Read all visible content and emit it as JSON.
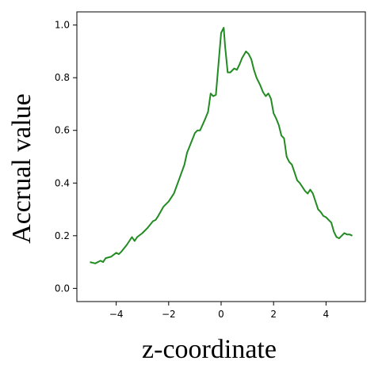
{
  "chart_data": {
    "type": "line",
    "title": "",
    "xlabel": "z-coordinate",
    "ylabel": "Accrual value",
    "xlim": [
      -5.5,
      5.5
    ],
    "ylim": [
      -0.05,
      1.05
    ],
    "xticks": [
      -4,
      -2,
      0,
      2,
      4
    ],
    "xtick_labels": [
      "−4",
      "−2",
      "0",
      "2",
      "4"
    ],
    "yticks": [
      0.0,
      0.2,
      0.4,
      0.6,
      0.8,
      1.0
    ],
    "ytick_labels": [
      "0.0",
      "0.2",
      "0.4",
      "0.6",
      "0.8",
      "1.0"
    ],
    "grid": false,
    "legend": "none",
    "series": [
      {
        "color": "#228B22",
        "x": [
          -5.0,
          -4.8,
          -4.6,
          -4.5,
          -4.4,
          -4.2,
          -4.0,
          -3.9,
          -3.8,
          -3.6,
          -3.4,
          -3.3,
          -3.2,
          -3.0,
          -2.8,
          -2.6,
          -2.5,
          -2.4,
          -2.2,
          -2.0,
          -1.8,
          -1.6,
          -1.4,
          -1.3,
          -1.2,
          -1.0,
          -0.9,
          -0.8,
          -0.6,
          -0.5,
          -0.4,
          -0.3,
          -0.2,
          0.0,
          0.1,
          0.15,
          0.25,
          0.35,
          0.5,
          0.6,
          0.7,
          0.8,
          0.95,
          1.05,
          1.15,
          1.25,
          1.35,
          1.5,
          1.6,
          1.7,
          1.8,
          1.9,
          2.0,
          2.1,
          2.2,
          2.3,
          2.4,
          2.5,
          2.6,
          2.7,
          2.8,
          2.9,
          3.0,
          3.2,
          3.3,
          3.4,
          3.5,
          3.6,
          3.7,
          3.8,
          3.9,
          4.0,
          4.1,
          4.2,
          4.3,
          4.4,
          4.5,
          4.6,
          4.7,
          4.8,
          4.9,
          5.0
        ],
        "y": [
          0.1,
          0.095,
          0.105,
          0.1,
          0.115,
          0.12,
          0.135,
          0.13,
          0.14,
          0.165,
          0.195,
          0.18,
          0.195,
          0.21,
          0.23,
          0.255,
          0.26,
          0.275,
          0.31,
          0.33,
          0.36,
          0.415,
          0.47,
          0.515,
          0.54,
          0.59,
          0.6,
          0.6,
          0.645,
          0.67,
          0.74,
          0.73,
          0.735,
          0.97,
          0.99,
          0.92,
          0.82,
          0.82,
          0.835,
          0.83,
          0.85,
          0.875,
          0.9,
          0.89,
          0.87,
          0.83,
          0.8,
          0.77,
          0.745,
          0.73,
          0.74,
          0.72,
          0.665,
          0.645,
          0.62,
          0.58,
          0.57,
          0.5,
          0.48,
          0.47,
          0.44,
          0.41,
          0.4,
          0.37,
          0.36,
          0.375,
          0.36,
          0.33,
          0.3,
          0.29,
          0.275,
          0.27,
          0.26,
          0.25,
          0.215,
          0.195,
          0.19,
          0.2,
          0.21,
          0.205,
          0.205,
          0.2
        ]
      }
    ]
  }
}
